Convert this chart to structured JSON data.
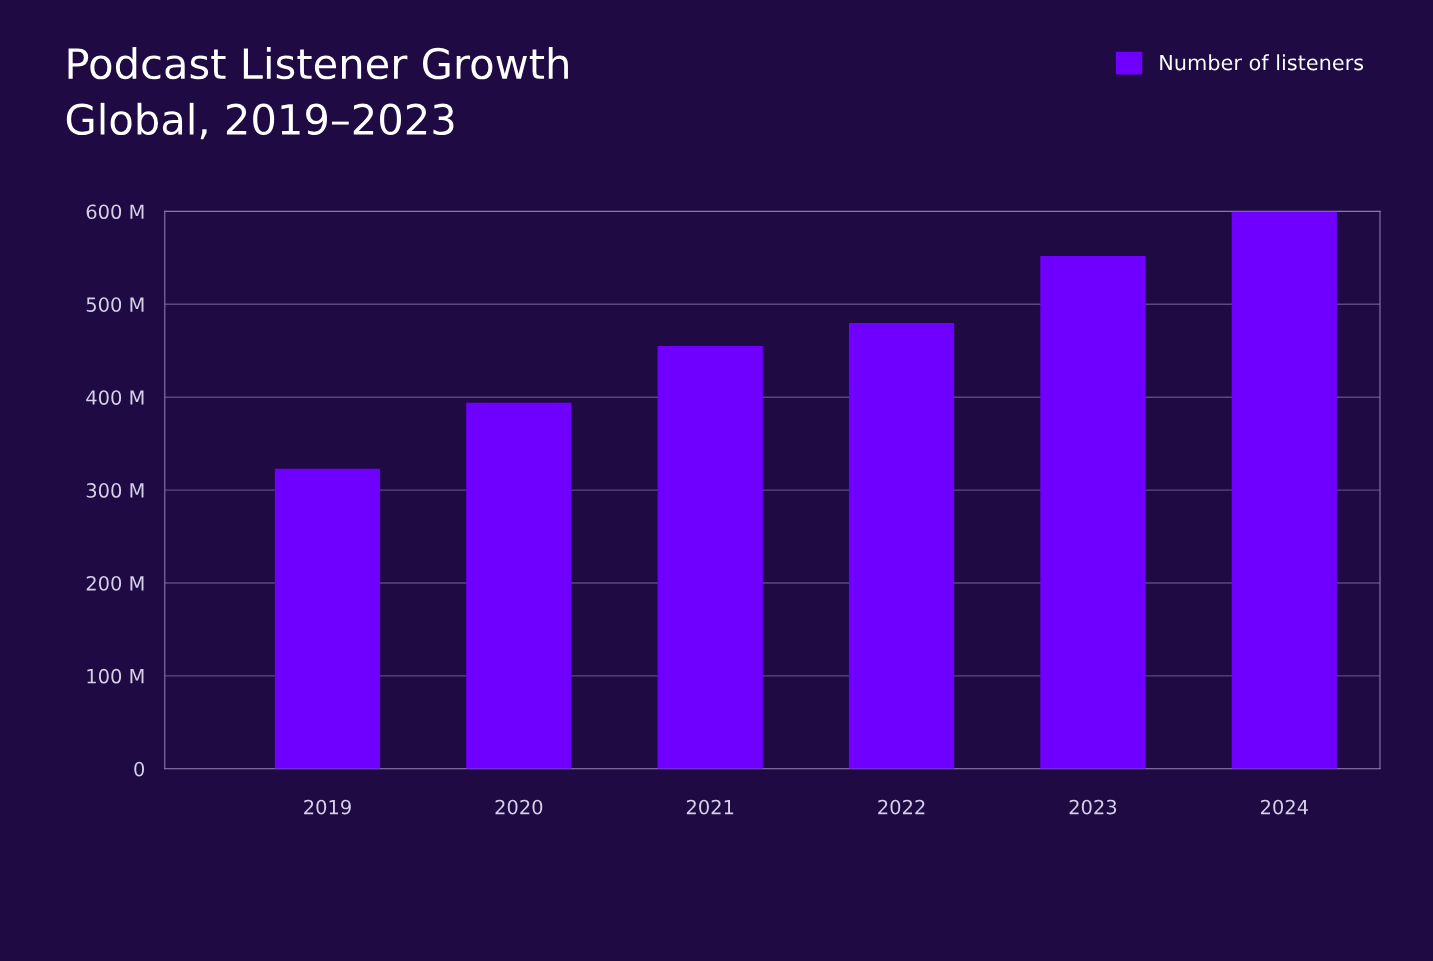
{
  "chart_data": {
    "type": "bar",
    "title": "Podcast Listener Growth",
    "subtitle": "Global, 2019–2023",
    "categories": [
      "2019",
      "2020",
      "2021",
      "2022",
      "2023",
      "2024"
    ],
    "series": [
      {
        "name": "Number of listeners",
        "color": "#6f00ff",
        "values": [
          323,
          394,
          455,
          480,
          552,
          600
        ]
      }
    ],
    "ylim": [
      0,
      600
    ],
    "yticks": [
      {
        "value": 0,
        "label": "0"
      },
      {
        "value": 100,
        "label": "100 M"
      },
      {
        "value": 200,
        "label": "200 M"
      },
      {
        "value": 300,
        "label": "300 M"
      },
      {
        "value": 400,
        "label": "400 M"
      },
      {
        "value": 500,
        "label": "500 M"
      },
      {
        "value": 600,
        "label": "600 M"
      }
    ],
    "grid": "y",
    "legend": "top right"
  }
}
